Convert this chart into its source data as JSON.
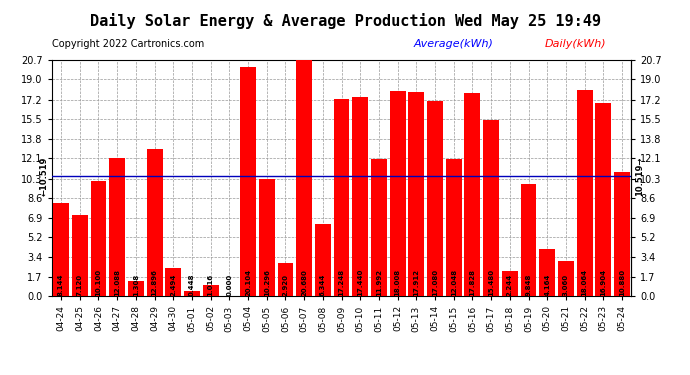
{
  "title": "Daily Solar Energy & Average Production Wed May 25 19:49",
  "copyright": "Copyright 2022 Cartronics.com",
  "legend_avg": "Average(kWh)",
  "legend_daily": "Daily(kWh)",
  "average_value": 10.519,
  "categories": [
    "04-24",
    "04-25",
    "04-26",
    "04-27",
    "04-28",
    "04-29",
    "04-30",
    "05-01",
    "05-02",
    "05-03",
    "05-04",
    "05-05",
    "05-06",
    "05-07",
    "05-08",
    "05-09",
    "05-10",
    "05-11",
    "05-12",
    "05-13",
    "05-14",
    "05-15",
    "05-16",
    "05-17",
    "05-18",
    "05-19",
    "05-20",
    "05-21",
    "05-22",
    "05-23",
    "05-24"
  ],
  "values": [
    8.144,
    7.12,
    10.1,
    12.088,
    1.308,
    12.896,
    2.494,
    0.448,
    1.016,
    0.0,
    20.104,
    10.296,
    2.92,
    20.68,
    6.344,
    17.248,
    17.44,
    11.992,
    18.008,
    17.912,
    17.08,
    12.048,
    17.828,
    15.48,
    2.244,
    9.848,
    4.164,
    3.06,
    18.064,
    16.904,
    10.88
  ],
  "bar_color": "#ff0000",
  "avg_line_color": "#0000bb",
  "background_color": "#ffffff",
  "plot_bg_color": "#ffffff",
  "grid_color": "#999999",
  "yticks": [
    0.0,
    1.7,
    3.4,
    5.2,
    6.9,
    8.6,
    10.3,
    12.1,
    13.8,
    15.5,
    17.2,
    19.0,
    20.7
  ],
  "ylim": [
    0.0,
    20.7
  ],
  "title_fontsize": 11,
  "copyright_fontsize": 7,
  "legend_fontsize": 8,
  "bar_label_fontsize": 5,
  "tick_fontsize": 7,
  "avg_label": "10.519"
}
